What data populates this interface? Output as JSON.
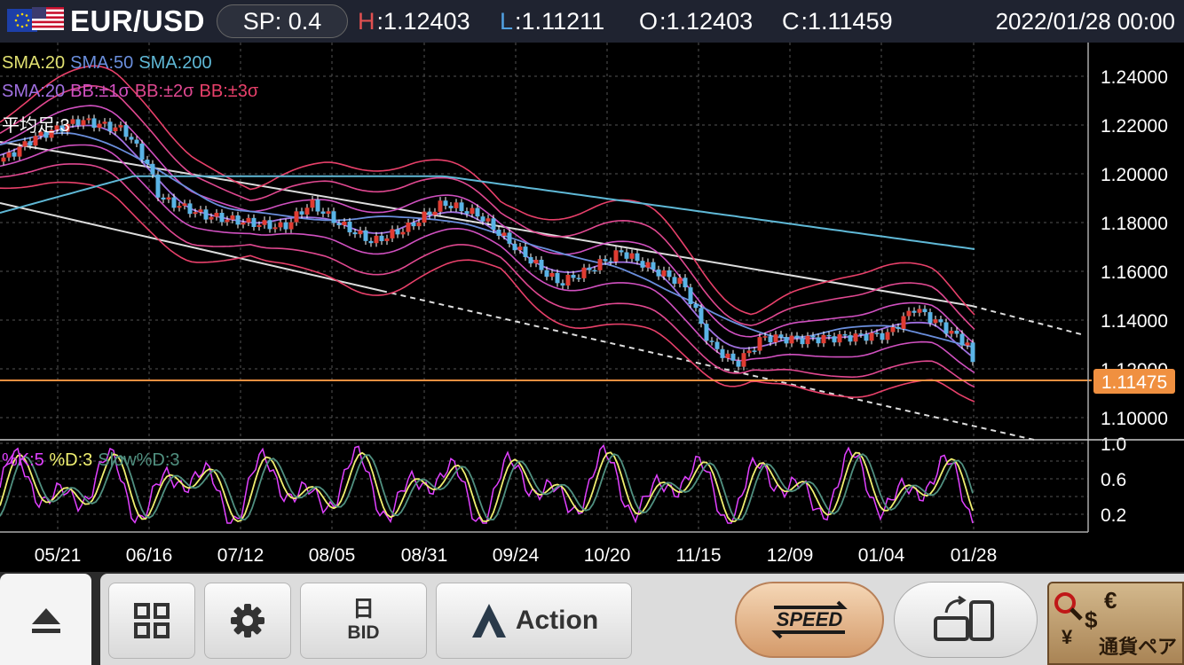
{
  "header": {
    "pair": "EUR/USD",
    "spread": "SP: 0.4",
    "high_key": "H",
    "high_value": ":1.12403",
    "low_key": "L",
    "low_value": ":1.11211",
    "open_key": "O",
    "open_value": ":1.12403",
    "close_key": "C",
    "close_value": ":1.11459",
    "datetime": "2022/01/28 00:00"
  },
  "legend": {
    "sma20": "SMA:20",
    "sma50": "SMA:50",
    "sma200": "SMA:200",
    "sma20b": "SMA:20",
    "bb1": "BB:±1σ",
    "bb2": "BB:±2σ",
    "bb3": "BB:±3σ",
    "heikin": "平均足:3",
    "stoch_k": "%K:5",
    "stoch_d": "%D:3",
    "stoch_slow": "Slow%D:3"
  },
  "colors": {
    "sma20": "#e0e070",
    "sma50": "#6a8edc",
    "sma200": "#5fb8d6",
    "sma20b": "#a070e0",
    "bb1": "#d050c0",
    "bb2": "#e04890",
    "bb3": "#e8406a",
    "up_candle": "#e03c32",
    "down_candle": "#5ab4e6",
    "current_line": "#f09040",
    "stoch_k": "#e040ff",
    "stoch_d": "#f0f070",
    "stoch_slow": "#509080"
  },
  "price_axis": {
    "labels": [
      "1.24000",
      "1.22000",
      "1.20000",
      "1.18000",
      "1.16000",
      "1.14000",
      "1.12000",
      "1.10000"
    ],
    "current_price": "1.11475"
  },
  "oscillator_axis": {
    "labels": [
      "1.0",
      "0.6",
      "0.2"
    ]
  },
  "date_axis": {
    "labels": [
      "05/21",
      "06/16",
      "07/12",
      "08/05",
      "08/31",
      "09/24",
      "10/20",
      "11/15",
      "12/09",
      "01/04",
      "01/28"
    ]
  },
  "toolbar": {
    "period_label": "日",
    "price_type_label": "BID",
    "action_label": "Action",
    "speed_label": "SPEED",
    "currency_pair_label": "通貨ペア"
  },
  "icons": {
    "eject": "eject-icon",
    "grid": "grid-icon",
    "settings": "gear-icon",
    "action": "action-triangle-icon",
    "speed": "speed-order-icon",
    "swap": "screen-rotate-icon",
    "currency": "currency-pair-icon"
  }
}
